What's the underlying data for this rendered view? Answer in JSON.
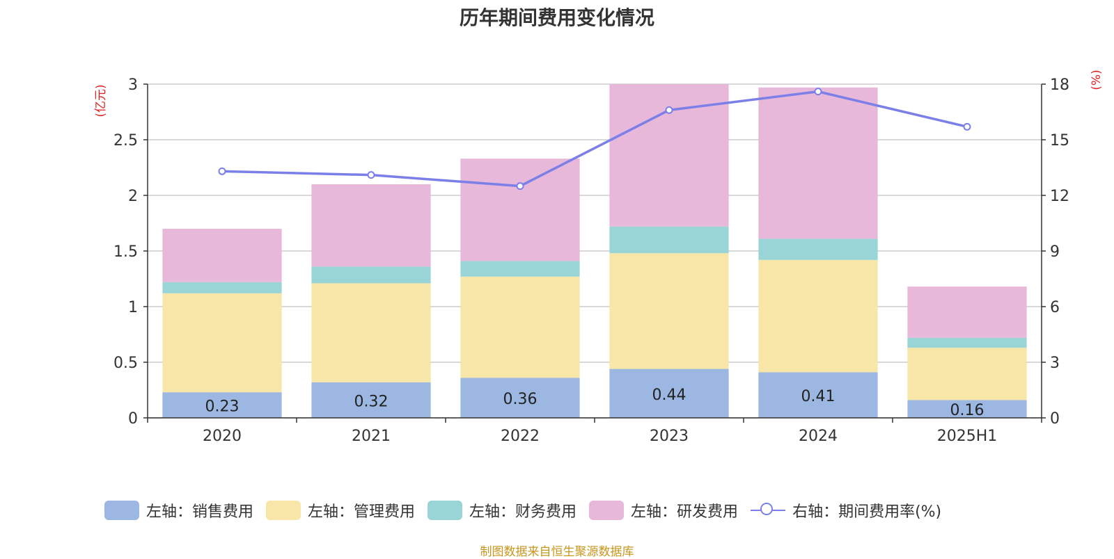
{
  "chart_data": {
    "type": "bar",
    "title": "历年期间费用变化情况",
    "footer": "制图数据来自恒生聚源数据库",
    "y_left_label": "(亿元)",
    "y_right_label": "(%)",
    "categories": [
      "2020",
      "2021",
      "2022",
      "2023",
      "2024",
      "2025H1"
    ],
    "ylim_left": [
      0,
      3
    ],
    "yticks_left": [
      "0",
      "0.5",
      "1",
      "1.5",
      "2",
      "2.5",
      "3"
    ],
    "ylim_right": [
      0,
      18
    ],
    "yticks_right": [
      "0",
      "3",
      "6",
      "9",
      "12",
      "15",
      "18"
    ],
    "grid": true,
    "legend_position": "bottom",
    "series": [
      {
        "name": "左轴：销售费用",
        "type": "bar",
        "axis": "left",
        "color": "#9bb7e2",
        "values": [
          0.23,
          0.32,
          0.36,
          0.44,
          0.41,
          0.16
        ],
        "show_labels": true
      },
      {
        "name": "左轴：管理费用",
        "type": "bar",
        "axis": "left",
        "color": "#f7e6a8",
        "values": [
          0.89,
          0.89,
          0.91,
          1.04,
          1.01,
          0.47
        ]
      },
      {
        "name": "左轴：财务费用",
        "type": "bar",
        "axis": "left",
        "color": "#99d4d6",
        "values": [
          0.1,
          0.15,
          0.14,
          0.24,
          0.19,
          0.09
        ]
      },
      {
        "name": "左轴：研发费用",
        "type": "bar",
        "axis": "left",
        "color": "#e7b8d9",
        "values": [
          0.48,
          0.74,
          0.92,
          1.28,
          1.36,
          0.46
        ]
      },
      {
        "name": "右轴：期间费用率(%)",
        "type": "line",
        "axis": "right",
        "color": "#7b7fe8",
        "values": [
          13.3,
          13.1,
          12.5,
          16.6,
          17.6,
          15.7
        ]
      }
    ]
  }
}
